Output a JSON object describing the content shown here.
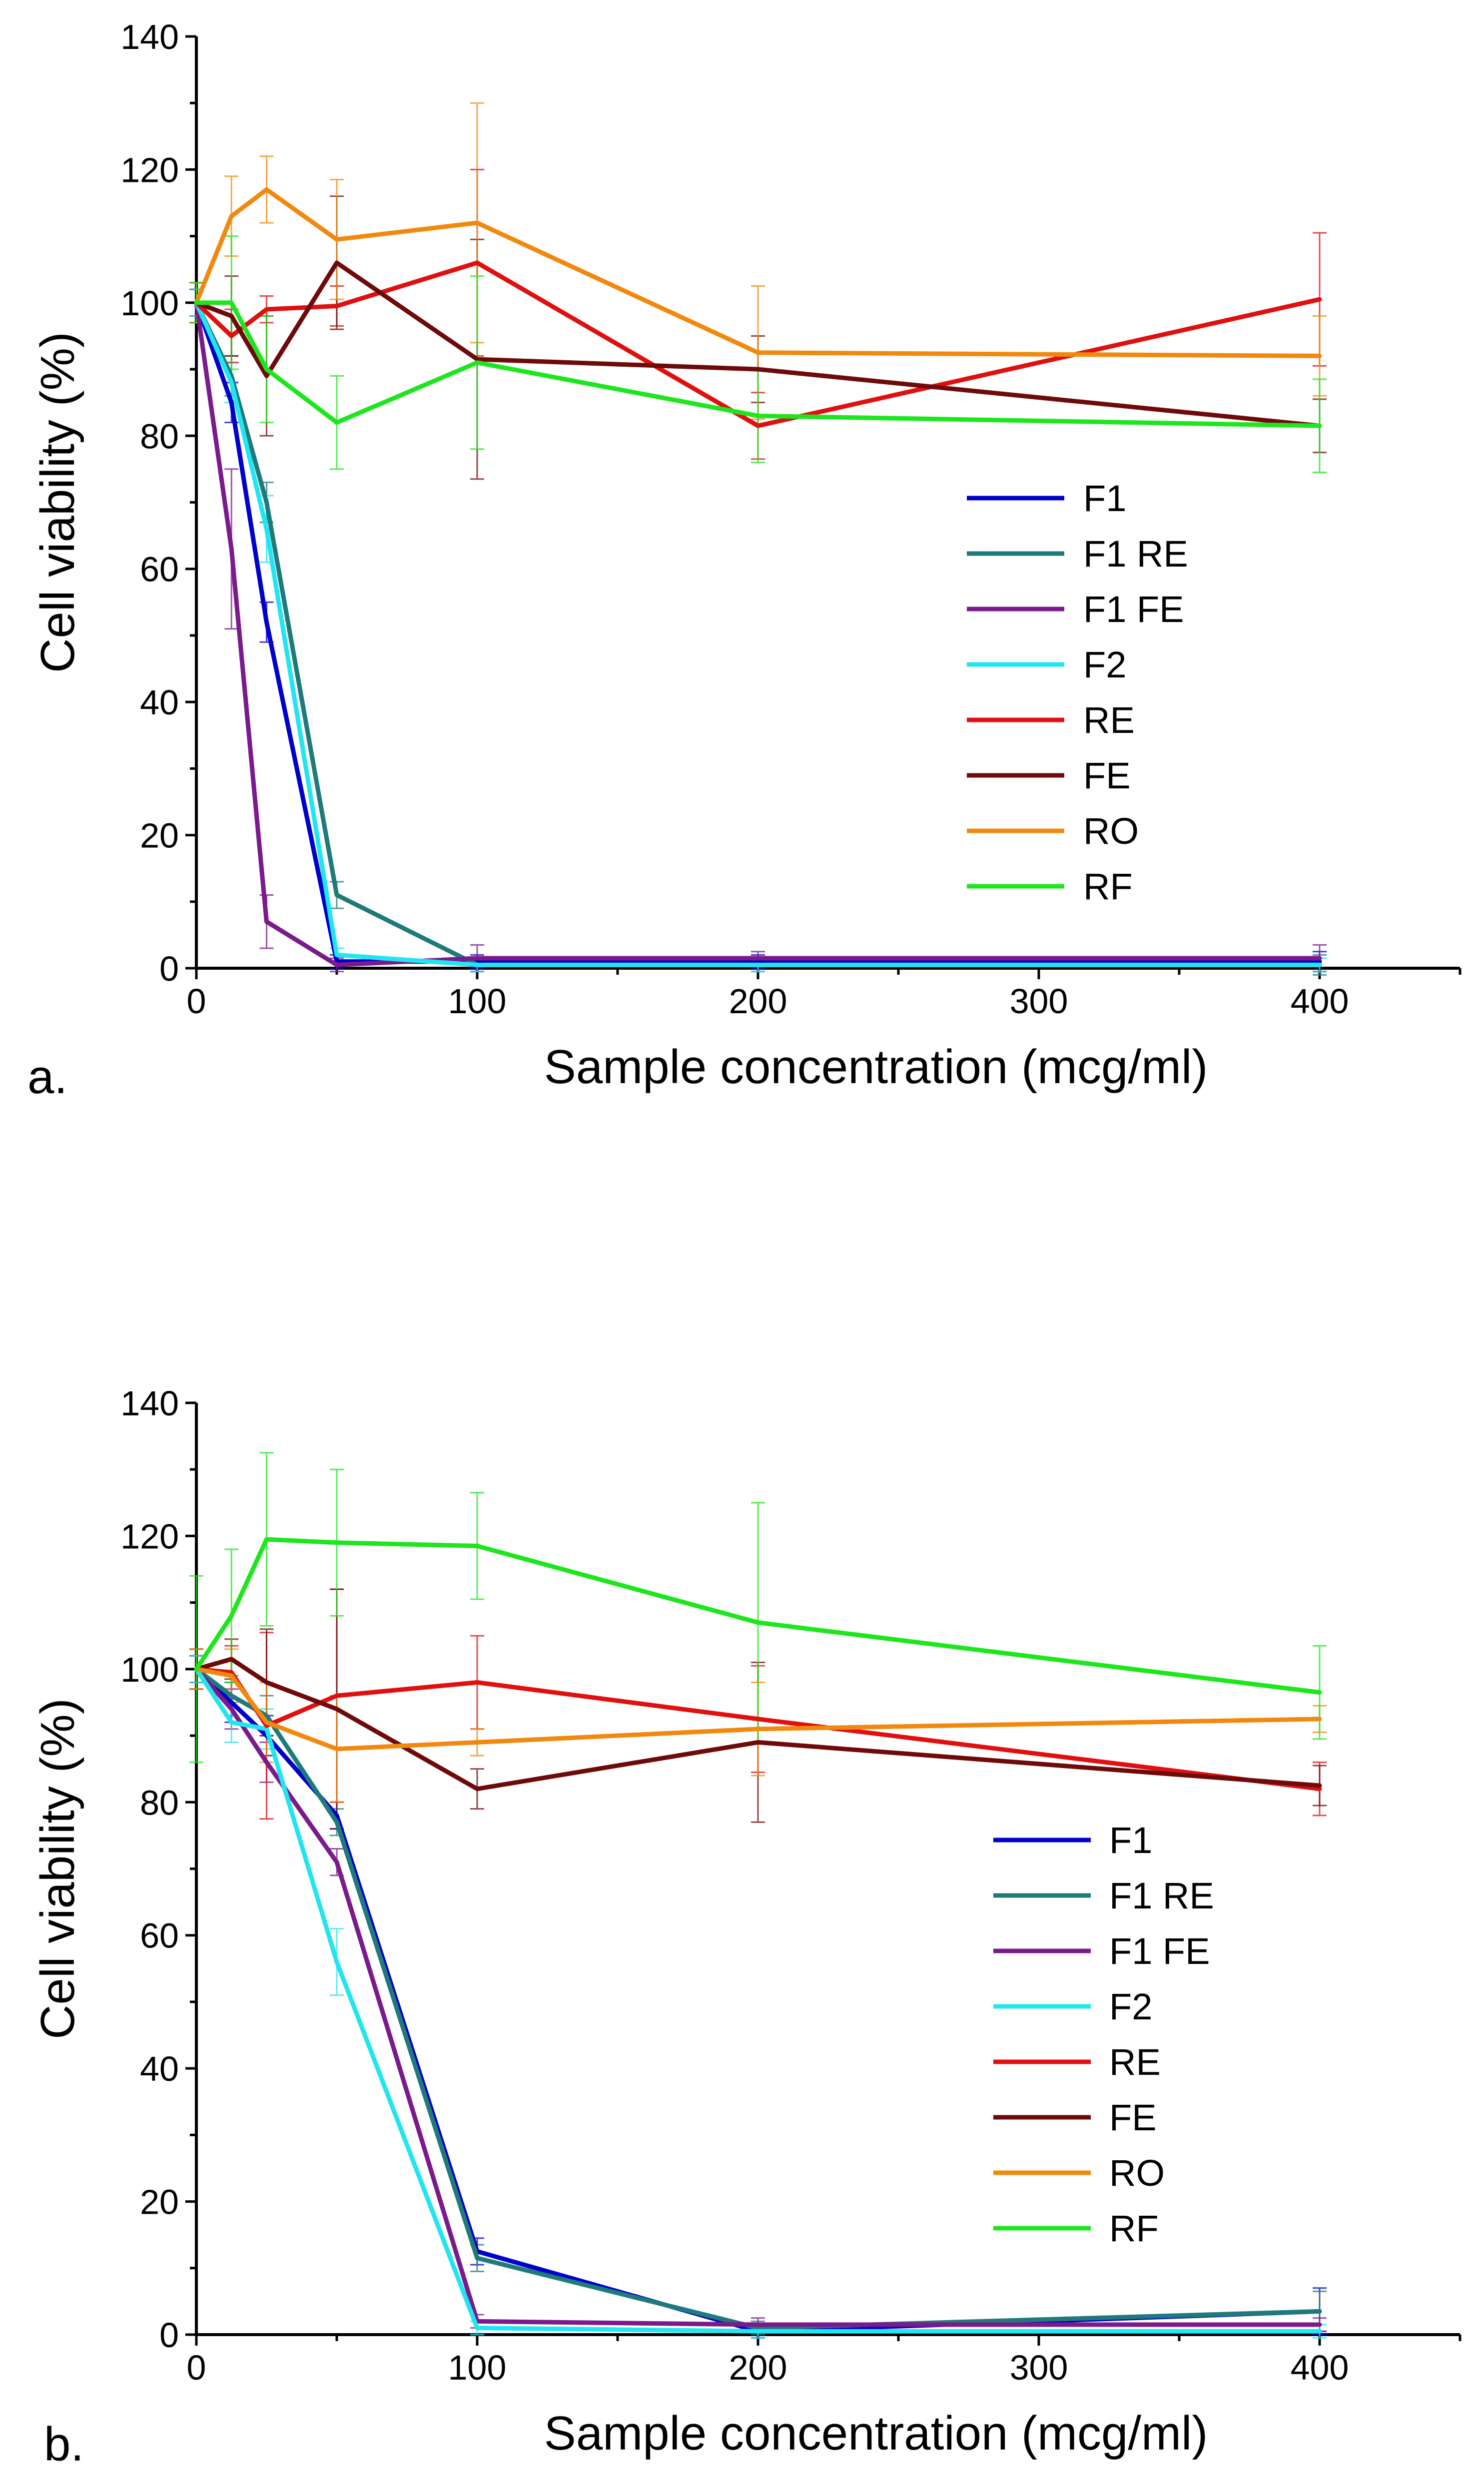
{
  "chart_data": [
    {
      "type": "line",
      "panel_label": "a.",
      "title": "",
      "xlabel": "Sample concentration (mcg/ml)",
      "ylabel": "Cell viability (%)",
      "xlim": [
        0,
        450
      ],
      "ylim": [
        0,
        140
      ],
      "x_ticks": [
        0,
        100,
        200,
        300,
        400
      ],
      "y_ticks": [
        0,
        20,
        40,
        60,
        80,
        100,
        120,
        140
      ],
      "grid": false,
      "legend_position": "right",
      "x": [
        0,
        12.5,
        25,
        50,
        100,
        200,
        400
      ],
      "series": [
        {
          "name": "F1",
          "color": "#0000CC",
          "values": [
            100,
            85,
            52,
            1,
            1,
            1,
            1
          ],
          "errors": [
            2,
            3,
            3,
            1,
            1,
            1,
            1.5
          ]
        },
        {
          "name": "F1 RE",
          "color": "#1F7B7B",
          "values": [
            100,
            89,
            70,
            11,
            0.5,
            0.5,
            0.5
          ],
          "errors": [
            2,
            3,
            3,
            2,
            1,
            1,
            1.5
          ]
        },
        {
          "name": "F1 FE",
          "color": "#7B1A8C",
          "values": [
            100,
            63,
            7,
            0.5,
            1.5,
            1.5,
            1.5
          ],
          "errors": [
            2,
            12,
            4,
            1,
            2,
            1,
            2
          ]
        },
        {
          "name": "F2",
          "color": "#22E5F2",
          "values": [
            100,
            88,
            66,
            2,
            0.5,
            0.5,
            0.5
          ],
          "errors": [
            2,
            3,
            5,
            1,
            1,
            1,
            1
          ]
        },
        {
          "name": "RE",
          "color": "#E01010",
          "values": [
            100,
            95,
            99,
            99.5,
            106,
            81.5,
            100.5
          ],
          "errors": [
            3,
            4,
            2,
            3,
            14,
            5,
            10
          ]
        },
        {
          "name": "FE",
          "color": "#6E0A0A",
          "values": [
            100,
            98,
            89,
            106,
            91.5,
            90,
            81.5
          ],
          "errors": [
            3,
            6,
            9,
            10,
            18,
            5,
            4
          ]
        },
        {
          "name": "RO",
          "color": "#F2890F",
          "values": [
            100,
            113,
            117,
            109.5,
            112,
            92.5,
            92
          ],
          "errors": [
            3,
            6,
            5,
            9,
            18,
            10,
            6
          ]
        },
        {
          "name": "RF",
          "color": "#1EE61E",
          "values": [
            100,
            100,
            90,
            82,
            91,
            83,
            81.5
          ],
          "errors": [
            3,
            10,
            8,
            7,
            13,
            7,
            7
          ]
        }
      ]
    },
    {
      "type": "line",
      "panel_label": "b.",
      "title": "",
      "xlabel": "Sample concentration (mcg/ml)",
      "ylabel": "Cell viability (%)",
      "xlim": [
        0,
        450
      ],
      "ylim": [
        0,
        140
      ],
      "x_ticks": [
        0,
        100,
        200,
        300,
        400
      ],
      "y_ticks": [
        0,
        20,
        40,
        60,
        80,
        100,
        120,
        140
      ],
      "grid": false,
      "legend_position": "right",
      "x": [
        0,
        12.5,
        25,
        50,
        100,
        200,
        400
      ],
      "series": [
        {
          "name": "F1",
          "color": "#0000CC",
          "values": [
            100,
            95,
            90,
            78,
            12.5,
            0.5,
            3.5
          ],
          "errors": [
            2,
            3,
            3,
            2,
            2,
            1,
            3.5
          ]
        },
        {
          "name": "F1 RE",
          "color": "#1F7B7B",
          "values": [
            100,
            96,
            93,
            77,
            11.5,
            1,
            3.5
          ],
          "errors": [
            2,
            3,
            3,
            2,
            2,
            1,
            3
          ]
        },
        {
          "name": "F1 FE",
          "color": "#7B1A8C",
          "values": [
            100,
            94,
            86,
            71,
            2,
            1.5,
            1.5
          ],
          "errors": [
            2,
            3,
            3,
            2,
            1,
            1,
            1
          ]
        },
        {
          "name": "F2",
          "color": "#22E5F2",
          "values": [
            100,
            92,
            91,
            56,
            1,
            0.5,
            0.5
          ],
          "errors": [
            2,
            3,
            3,
            5,
            1,
            1,
            1
          ]
        },
        {
          "name": "RE",
          "color": "#E01010",
          "values": [
            100,
            99.5,
            91.5,
            96,
            98,
            92.5,
            82
          ],
          "errors": [
            3,
            4,
            14,
            16,
            7,
            8,
            4
          ]
        },
        {
          "name": "FE",
          "color": "#6E0A0A",
          "values": [
            100,
            101.5,
            98,
            94,
            82,
            89,
            82.5
          ],
          "errors": [
            3,
            3,
            8,
            18,
            3,
            12,
            3
          ]
        },
        {
          "name": "RO",
          "color": "#F2890F",
          "values": [
            100,
            99,
            92,
            88,
            89,
            91,
            92.5
          ],
          "errors": [
            3,
            4,
            6,
            8,
            2,
            7,
            2
          ]
        },
        {
          "name": "RF",
          "color": "#1EE61E",
          "values": [
            100,
            108,
            119.5,
            119,
            118.5,
            107,
            96.5
          ],
          "errors": [
            14,
            10,
            13,
            11,
            8,
            18,
            7
          ]
        }
      ]
    }
  ]
}
